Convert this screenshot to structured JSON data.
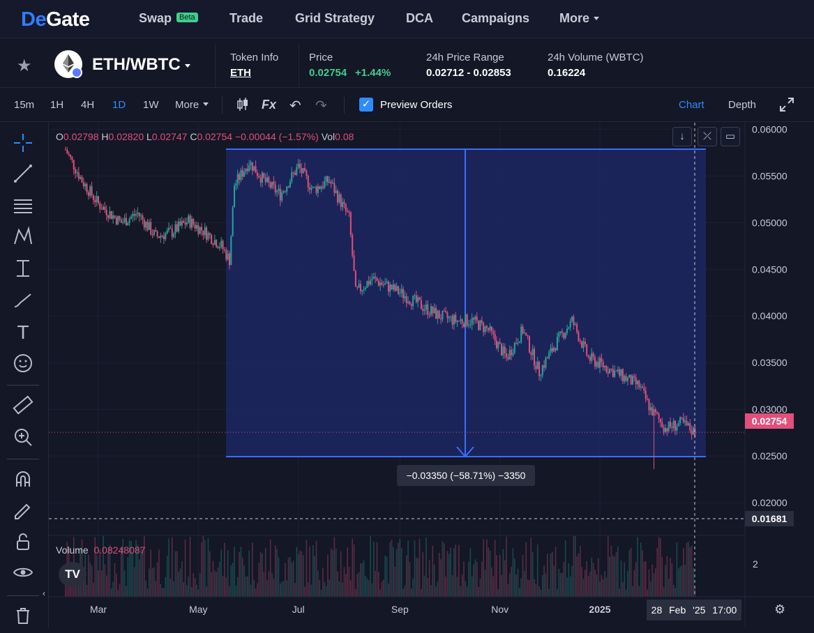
{
  "nav": {
    "logo_prefix": "De",
    "logo_suffix": "Gate",
    "swap": "Swap",
    "beta": "Beta",
    "trade": "Trade",
    "grid": "Grid Strategy",
    "dca": "DCA",
    "campaigns": "Campaigns",
    "more": "More"
  },
  "pair": {
    "name": "ETH/WBTC",
    "token_info_label": "Token Info",
    "token_info_value": "ETH",
    "price_label": "Price",
    "price": "0.02754",
    "change": "+1.44%",
    "range_label": "24h Price Range",
    "range": "0.02712 - 0.02853",
    "volume_label": "24h Volume (WBTC)",
    "volume": "0.16224"
  },
  "toolbar": {
    "timeframes": [
      "15m",
      "1H",
      "4H",
      "1D",
      "1W",
      "More"
    ],
    "active_timeframe": "1D",
    "preview_orders": "Preview Orders",
    "chart_tab": "Chart",
    "depth_tab": "Depth"
  },
  "ohlc": {
    "o_label": "O",
    "o": "0.02798",
    "h_label": "H",
    "h": "0.02820",
    "l_label": "L",
    "l": "0.02747",
    "c_label": "C",
    "c": "0.02754",
    "chg": "−0.00044 (−1.57%)",
    "vol_label": "Vol",
    "vol": "0.08"
  },
  "volume_pane": {
    "label": "Volume",
    "value": "0.08248087",
    "axis_label": "2"
  },
  "measure": {
    "text": "−0.03350 (−58.71%) −3350"
  },
  "price_tags": {
    "last": "0.02754",
    "cursor": "0.01681"
  },
  "date_tag": "28 Feb '25   17:00",
  "colors": {
    "up": "#26a69a",
    "down": "#e34f7a",
    "accent": "#2f8cff",
    "measure_fill": "#1e2a6b"
  },
  "chart_data": {
    "type": "candlestick",
    "pair": "ETH/WBTC",
    "interval": "1D",
    "y_ticks": [
      "0.06000",
      "0.05500",
      "0.05000",
      "0.04500",
      "0.04000",
      "0.03500",
      "0.03000",
      "0.02500",
      "0.02000"
    ],
    "x_ticks": [
      "Mar",
      "May",
      "Jul",
      "Sep",
      "Nov",
      "2025"
    ],
    "ylim": [
      0.0165,
      0.0607
    ],
    "last_price": 0.02754,
    "measure_range": {
      "from": 0.057,
      "to": 0.0235,
      "change": -0.0335,
      "change_pct": -58.71
    },
    "close_path": [
      [
        "2024-02-10",
        0.0578
      ],
      [
        "2024-02-20",
        0.0545
      ],
      [
        "2024-03-01",
        0.052
      ],
      [
        "2024-03-15",
        0.05
      ],
      [
        "2024-03-25",
        0.051
      ],
      [
        "2024-04-05",
        0.0485
      ],
      [
        "2024-04-15",
        0.049
      ],
      [
        "2024-04-25",
        0.0502
      ],
      [
        "2024-05-05",
        0.049
      ],
      [
        "2024-05-15",
        0.0475
      ],
      [
        "2024-05-20",
        0.046
      ],
      [
        "2024-05-23",
        0.054
      ],
      [
        "2024-06-01",
        0.0565
      ],
      [
        "2024-06-10",
        0.0545
      ],
      [
        "2024-06-20",
        0.053
      ],
      [
        "2024-07-01",
        0.056
      ],
      [
        "2024-07-10",
        0.0535
      ],
      [
        "2024-07-20",
        0.0545
      ],
      [
        "2024-08-01",
        0.0505
      ],
      [
        "2024-08-05",
        0.0425
      ],
      [
        "2024-08-15",
        0.044
      ],
      [
        "2024-09-01",
        0.0425
      ],
      [
        "2024-09-15",
        0.041
      ],
      [
        "2024-09-25",
        0.04
      ],
      [
        "2024-10-05",
        0.0395
      ],
      [
        "2024-10-15",
        0.0395
      ],
      [
        "2024-10-25",
        0.0385
      ],
      [
        "2024-11-05",
        0.0355
      ],
      [
        "2024-11-15",
        0.0385
      ],
      [
        "2024-11-25",
        0.034
      ],
      [
        "2024-12-05",
        0.037
      ],
      [
        "2024-12-15",
        0.0395
      ],
      [
        "2024-12-25",
        0.0355
      ],
      [
        "2025-01-05",
        0.0345
      ],
      [
        "2025-01-15",
        0.0335
      ],
      [
        "2025-01-25",
        0.0325
      ],
      [
        "2025-02-01",
        0.03
      ],
      [
        "2025-02-10",
        0.028
      ],
      [
        "2025-02-20",
        0.0285
      ],
      [
        "2025-02-28",
        0.02754
      ]
    ]
  }
}
